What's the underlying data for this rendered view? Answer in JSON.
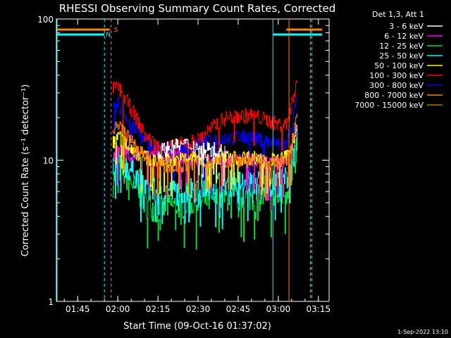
{
  "chart_data": {
    "type": "line",
    "title": "RHESSI Observing Summary Count Rates, Corrected",
    "xlabel": "Start Time (09-Oct-16 01:37:02)",
    "ylabel": "Corrected Count Rate (s⁻¹ detector⁻¹)",
    "yscale": "log",
    "ylim": [
      1,
      100
    ],
    "xlim": [
      "01:37:02",
      "03:19:00"
    ],
    "x_ticks": [
      "01:45",
      "02:00",
      "02:15",
      "02:30",
      "02:45",
      "03:00",
      "03:15"
    ],
    "y_ticks": [
      "1",
      "10",
      "100"
    ],
    "grid": false,
    "legend_title": "Det 1,3, Att 1",
    "legend_position": "top-right",
    "flag_labels": [
      "S",
      "N"
    ],
    "footer": "1-Sep-2022 13:10",
    "series": [
      {
        "name": "3 - 6 keV",
        "color": "#ffffff",
        "x": [
          "02:15",
          "02:20",
          "02:25",
          "02:30",
          "02:35",
          "02:40"
        ],
        "y": [
          11.5,
          12.5,
          13.0,
          12.5,
          12.0,
          11.5
        ]
      },
      {
        "name": "6 - 12 keV",
        "color": "#ff00ff",
        "x": [
          "01:58",
          "02:00",
          "02:05",
          "02:10",
          "02:15",
          "02:20",
          "02:30",
          "02:40",
          "02:50",
          "03:00",
          "03:03",
          "03:05",
          "03:07"
        ],
        "y": [
          9.5,
          12.5,
          11.0,
          10.5,
          10.5,
          10.5,
          10.5,
          10.5,
          10.0,
          9.5,
          10.0,
          12.0,
          18.0
        ]
      },
      {
        "name": "12 - 25 keV",
        "color": "#00e040",
        "x": [
          "01:58",
          "02:00",
          "02:05",
          "02:10",
          "02:15",
          "02:20",
          "02:30",
          "02:40",
          "02:50",
          "03:00",
          "03:03",
          "03:05",
          "03:07"
        ],
        "y": [
          7.0,
          9.0,
          7.0,
          5.0,
          4.5,
          4.8,
          5.0,
          5.5,
          5.5,
          5.5,
          6.0,
          8.0,
          13.0
        ]
      },
      {
        "name": "25 - 50 keV",
        "color": "#00ffff",
        "x": [
          "01:58",
          "02:00",
          "02:05",
          "02:10",
          "02:15",
          "02:20",
          "02:30",
          "02:40",
          "02:50",
          "03:00",
          "03:03",
          "03:05",
          "03:07"
        ],
        "y": [
          9.0,
          10.5,
          8.5,
          6.5,
          6.0,
          6.0,
          6.5,
          7.0,
          7.0,
          7.0,
          7.5,
          9.0,
          15.0
        ]
      },
      {
        "name": "50 - 100 keV",
        "color": "#ffff00",
        "x": [
          "01:58",
          "02:00",
          "02:05",
          "02:10",
          "02:15",
          "02:20",
          "02:30",
          "02:40",
          "02:50",
          "03:00",
          "03:03",
          "03:05",
          "03:07"
        ],
        "y": [
          13.0,
          15.0,
          12.0,
          10.5,
          10.0,
          10.0,
          10.5,
          10.5,
          10.5,
          10.0,
          10.5,
          12.5,
          19.0
        ]
      },
      {
        "name": "100 - 300 keV",
        "color": "#ff0000",
        "x": [
          "01:58",
          "02:00",
          "02:05",
          "02:10",
          "02:15",
          "02:20",
          "02:30",
          "02:35",
          "02:40",
          "02:50",
          "03:00",
          "03:03",
          "03:05",
          "03:07"
        ],
        "y": [
          32.0,
          33.0,
          23.0,
          15.0,
          12.5,
          12.5,
          14.0,
          17.0,
          20.0,
          21.0,
          18.0,
          18.0,
          25.0,
          38.0
        ]
      },
      {
        "name": "300 - 800 keV",
        "color": "#0000ff",
        "x": [
          "01:58",
          "02:00",
          "02:05",
          "02:10",
          "02:15",
          "02:20",
          "02:30",
          "02:40",
          "02:50",
          "03:00",
          "03:03",
          "03:05",
          "03:07"
        ],
        "y": [
          22.0,
          25.0,
          18.0,
          13.5,
          12.0,
          12.0,
          13.0,
          14.5,
          14.5,
          13.0,
          13.0,
          18.0,
          28.0
        ]
      },
      {
        "name": "800 - 7000 keV",
        "color": "#ff8000",
        "x": [
          "01:58",
          "02:00",
          "02:05",
          "02:10",
          "02:15",
          "02:20",
          "02:30",
          "02:40",
          "02:50",
          "03:00",
          "03:03",
          "03:05",
          "03:07"
        ],
        "y": [
          15.0,
          18.0,
          13.5,
          10.5,
          9.5,
          9.0,
          9.5,
          10.0,
          10.0,
          9.5,
          10.0,
          13.0,
          22.0
        ]
      },
      {
        "name": "7000 - 15000 keV",
        "color": "#aa7700",
        "x": [],
        "y": []
      }
    ]
  }
}
